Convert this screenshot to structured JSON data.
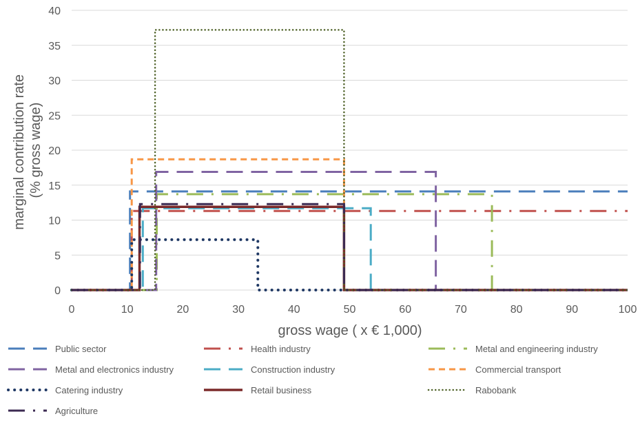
{
  "chart_data": {
    "type": "line",
    "title": "",
    "xlabel": "gross wage ( x € 1,000)",
    "ylabel_lines": [
      "marginal contribution rate",
      "(% gross wage)"
    ],
    "xlim": [
      0,
      100
    ],
    "ylim": [
      0,
      40
    ],
    "xticks": [
      0,
      10,
      20,
      30,
      40,
      50,
      60,
      70,
      80,
      90,
      100
    ],
    "yticks": [
      0,
      5,
      10,
      15,
      20,
      25,
      30,
      35,
      40
    ],
    "grid": true,
    "legend_position": "bottom",
    "series": [
      {
        "name": "Public sector",
        "color": "#4a7ebb",
        "dash": "longdash",
        "x": [
          0,
          10.5,
          10.5,
          100
        ],
        "y": [
          0,
          0,
          14.1,
          14.1
        ]
      },
      {
        "name": "Health industry",
        "color": "#c0504d",
        "dash": "dashdot",
        "x": [
          0,
          10.8,
          10.8,
          100
        ],
        "y": [
          0,
          0,
          11.3,
          11.3
        ]
      },
      {
        "name": "Metal and engineering industry",
        "color": "#9bbb59",
        "dash": "dashdot",
        "x": [
          0,
          15.3,
          15.3,
          75.6,
          75.6,
          100
        ],
        "y": [
          0,
          0,
          13.7,
          13.7,
          0,
          0
        ]
      },
      {
        "name": "Metal and electronics industry",
        "color": "#8064a2",
        "dash": "longdash",
        "x": [
          0,
          15.2,
          15.2,
          65.5,
          65.5,
          100
        ],
        "y": [
          0,
          0,
          16.9,
          16.9,
          0,
          0
        ]
      },
      {
        "name": "Construction industry",
        "color": "#4bacc6",
        "dash": "longdash",
        "x": [
          0,
          12.8,
          12.8,
          53.8,
          53.8,
          100
        ],
        "y": [
          0,
          0,
          11.7,
          11.7,
          0,
          0
        ]
      },
      {
        "name": "Commercial transport",
        "color": "#f79646",
        "dash": "dash",
        "x": [
          0,
          10.8,
          10.8,
          49.0,
          49.0,
          100
        ],
        "y": [
          0,
          0,
          18.7,
          18.7,
          0,
          0
        ]
      },
      {
        "name": "Catering industry",
        "color": "#1f3864",
        "dash": "dot",
        "x": [
          0,
          10.8,
          10.8,
          33.5,
          33.5,
          100
        ],
        "y": [
          0,
          0,
          7.2,
          7.2,
          0,
          0
        ]
      },
      {
        "name": "Retail business",
        "color": "#7b2a2a",
        "dash": "solid",
        "x": [
          0,
          12.2,
          12.2,
          49.0,
          49.0,
          100
        ],
        "y": [
          0,
          0,
          11.9,
          11.9,
          0,
          0
        ]
      },
      {
        "name": "Rabobank",
        "color": "#4f6228",
        "dash": "smalldot",
        "x": [
          0,
          15.0,
          15.0,
          49.0,
          49.0,
          100
        ],
        "y": [
          0,
          0,
          37.2,
          37.2,
          0,
          0
        ]
      },
      {
        "name": "Agriculture",
        "color": "#3b2a52",
        "dash": "dashdot",
        "x": [
          0,
          12.3,
          12.3,
          49.0,
          49.0,
          100
        ],
        "y": [
          0,
          0,
          12.3,
          12.3,
          0,
          0
        ]
      }
    ]
  }
}
